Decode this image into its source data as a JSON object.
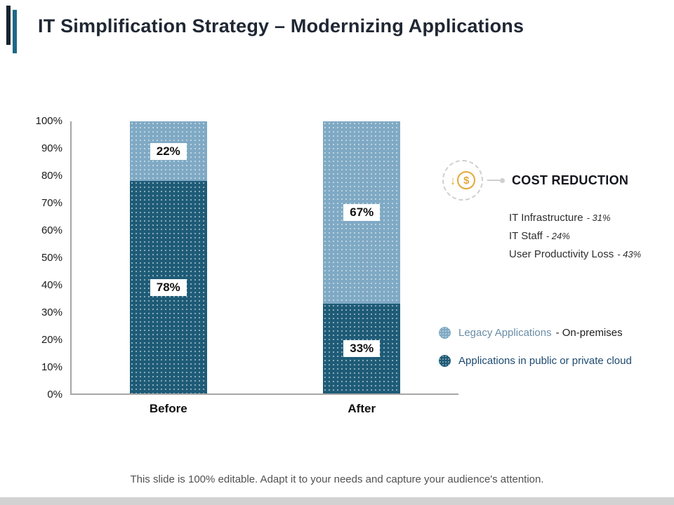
{
  "title": "IT Simplification Strategy – Modernizing Applications",
  "footer": "This slide is 100% editable. Adapt it to your needs and capture your audience's attention.",
  "chart_data": {
    "type": "bar",
    "stacked": true,
    "categories": [
      "Before",
      "After"
    ],
    "series": [
      {
        "name": "Applications in public or private cloud",
        "color": "#1e5b76",
        "values": [
          78,
          33
        ]
      },
      {
        "name": "Legacy Applications - On-premises",
        "color": "#7fa9c4",
        "values": [
          22,
          67
        ]
      }
    ],
    "data_labels": [
      [
        "78%",
        "22%"
      ],
      [
        "33%",
        "67%"
      ]
    ],
    "ylim": [
      0,
      100
    ],
    "ytick_labels": [
      "100%",
      "90%",
      "80%",
      "70%",
      "60%",
      "50%",
      "40%",
      "30%",
      "20%",
      "10%",
      "0%"
    ],
    "xlabel": "",
    "ylabel": "",
    "grid": false,
    "legend_position": "right"
  },
  "cost_reduction": {
    "heading": "COST REDUCTION",
    "icon": "dollar-down-icon",
    "icon_color": "#e2a93b",
    "items": [
      {
        "label": "IT Infrastructure",
        "value": "- 31%"
      },
      {
        "label": "IT Staff",
        "value": "- 24%"
      },
      {
        "label": "User Productivity Loss",
        "value": "- 43%"
      }
    ]
  },
  "legend": [
    {
      "swatch_color": "#7fa9c4",
      "label": "Legacy Applications",
      "suffix": "- On-premises"
    },
    {
      "swatch_color": "#1e5b76",
      "label": "Applications in public or private cloud",
      "suffix": ""
    }
  ]
}
